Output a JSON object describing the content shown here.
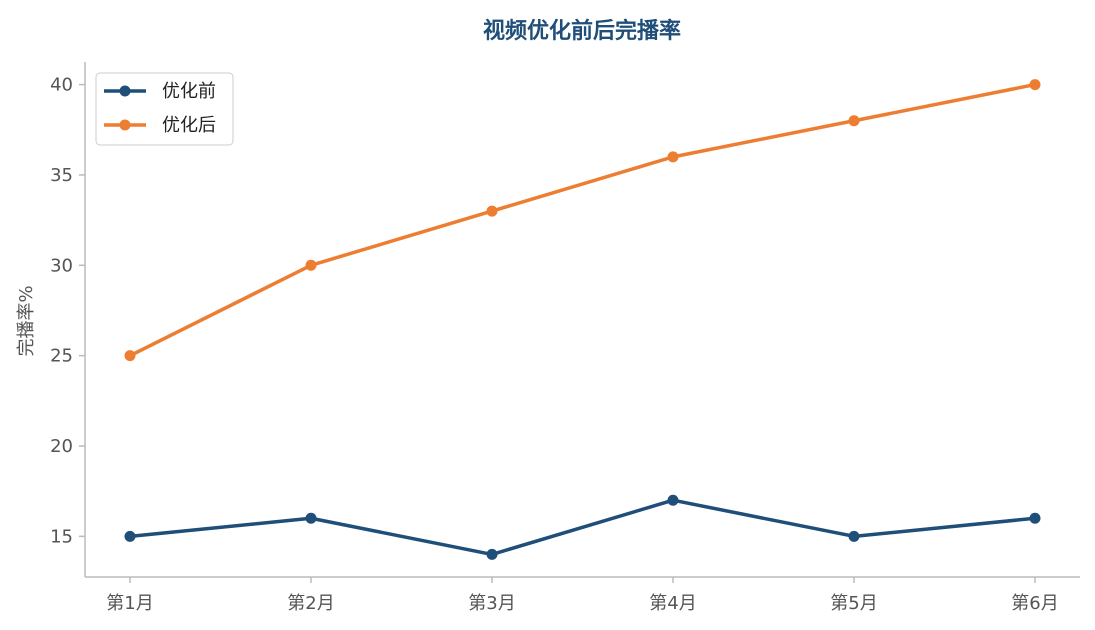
{
  "chart_data": {
    "type": "line",
    "title": "视频优化前后完播率",
    "xlabel": "",
    "ylabel": "完播率%",
    "categories": [
      "第1月",
      "第2月",
      "第3月",
      "第4月",
      "第5月",
      "第6月"
    ],
    "series": [
      {
        "name": "优化前",
        "values": [
          15,
          16,
          14,
          17,
          15,
          16
        ],
        "color": "#1f4e79"
      },
      {
        "name": "优化后",
        "values": [
          25,
          30,
          33,
          36,
          38,
          40
        ],
        "color": "#ed7d31"
      }
    ],
    "ylim": [
      12.75,
      41.25
    ],
    "yticks": [
      15,
      20,
      25,
      30,
      35,
      40
    ],
    "grid": false,
    "legend": "top-left",
    "axis_color": "#bbbbbb"
  }
}
